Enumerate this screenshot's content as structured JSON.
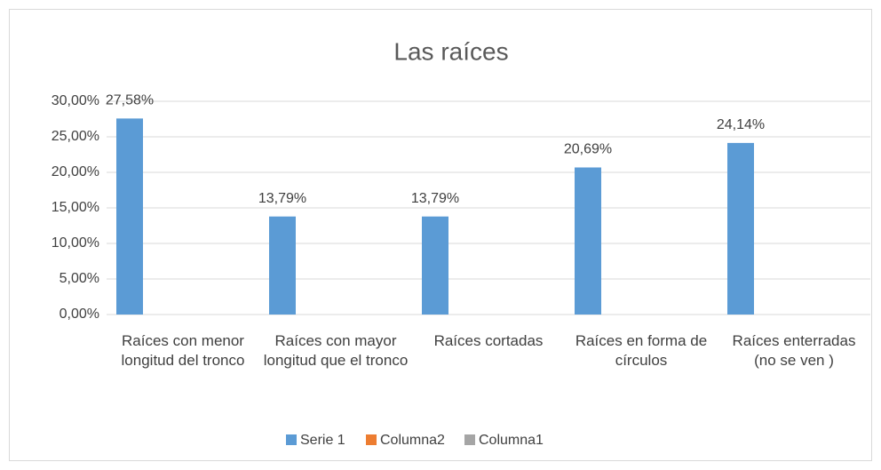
{
  "chart_data": {
    "type": "bar",
    "title": "Las raíces",
    "categories": [
      "Raíces con menor longitud del tronco",
      "Raíces con mayor longitud que el tronco",
      "Raíces cortadas",
      "Raíces en forma de círculos",
      "Raíces enterradas (no se ven )"
    ],
    "series": [
      {
        "name": "Serie 1",
        "color": "#5b9bd5",
        "values": [
          27.58,
          13.79,
          13.79,
          20.69,
          24.14
        ],
        "value_labels": [
          "27,58%",
          "13,79%",
          "13,79%",
          "20,69%",
          "24,14%"
        ]
      },
      {
        "name": "Columna2",
        "color": "#ed7d31",
        "values": [
          null,
          null,
          null,
          null,
          null
        ]
      },
      {
        "name": "Columna1",
        "color": "#a5a5a5",
        "values": [
          null,
          null,
          null,
          null,
          null
        ]
      }
    ],
    "ylim": [
      0,
      30
    ],
    "yticks": [
      {
        "value": 0,
        "label": "0,00%"
      },
      {
        "value": 5,
        "label": "5,00%"
      },
      {
        "value": 10,
        "label": "10,00%"
      },
      {
        "value": 15,
        "label": "15,00%"
      },
      {
        "value": 20,
        "label": "20,00%"
      },
      {
        "value": 25,
        "label": "25,00%"
      },
      {
        "value": 30,
        "label": "30,00%"
      }
    ],
    "grid": true,
    "legend": "bottom"
  }
}
